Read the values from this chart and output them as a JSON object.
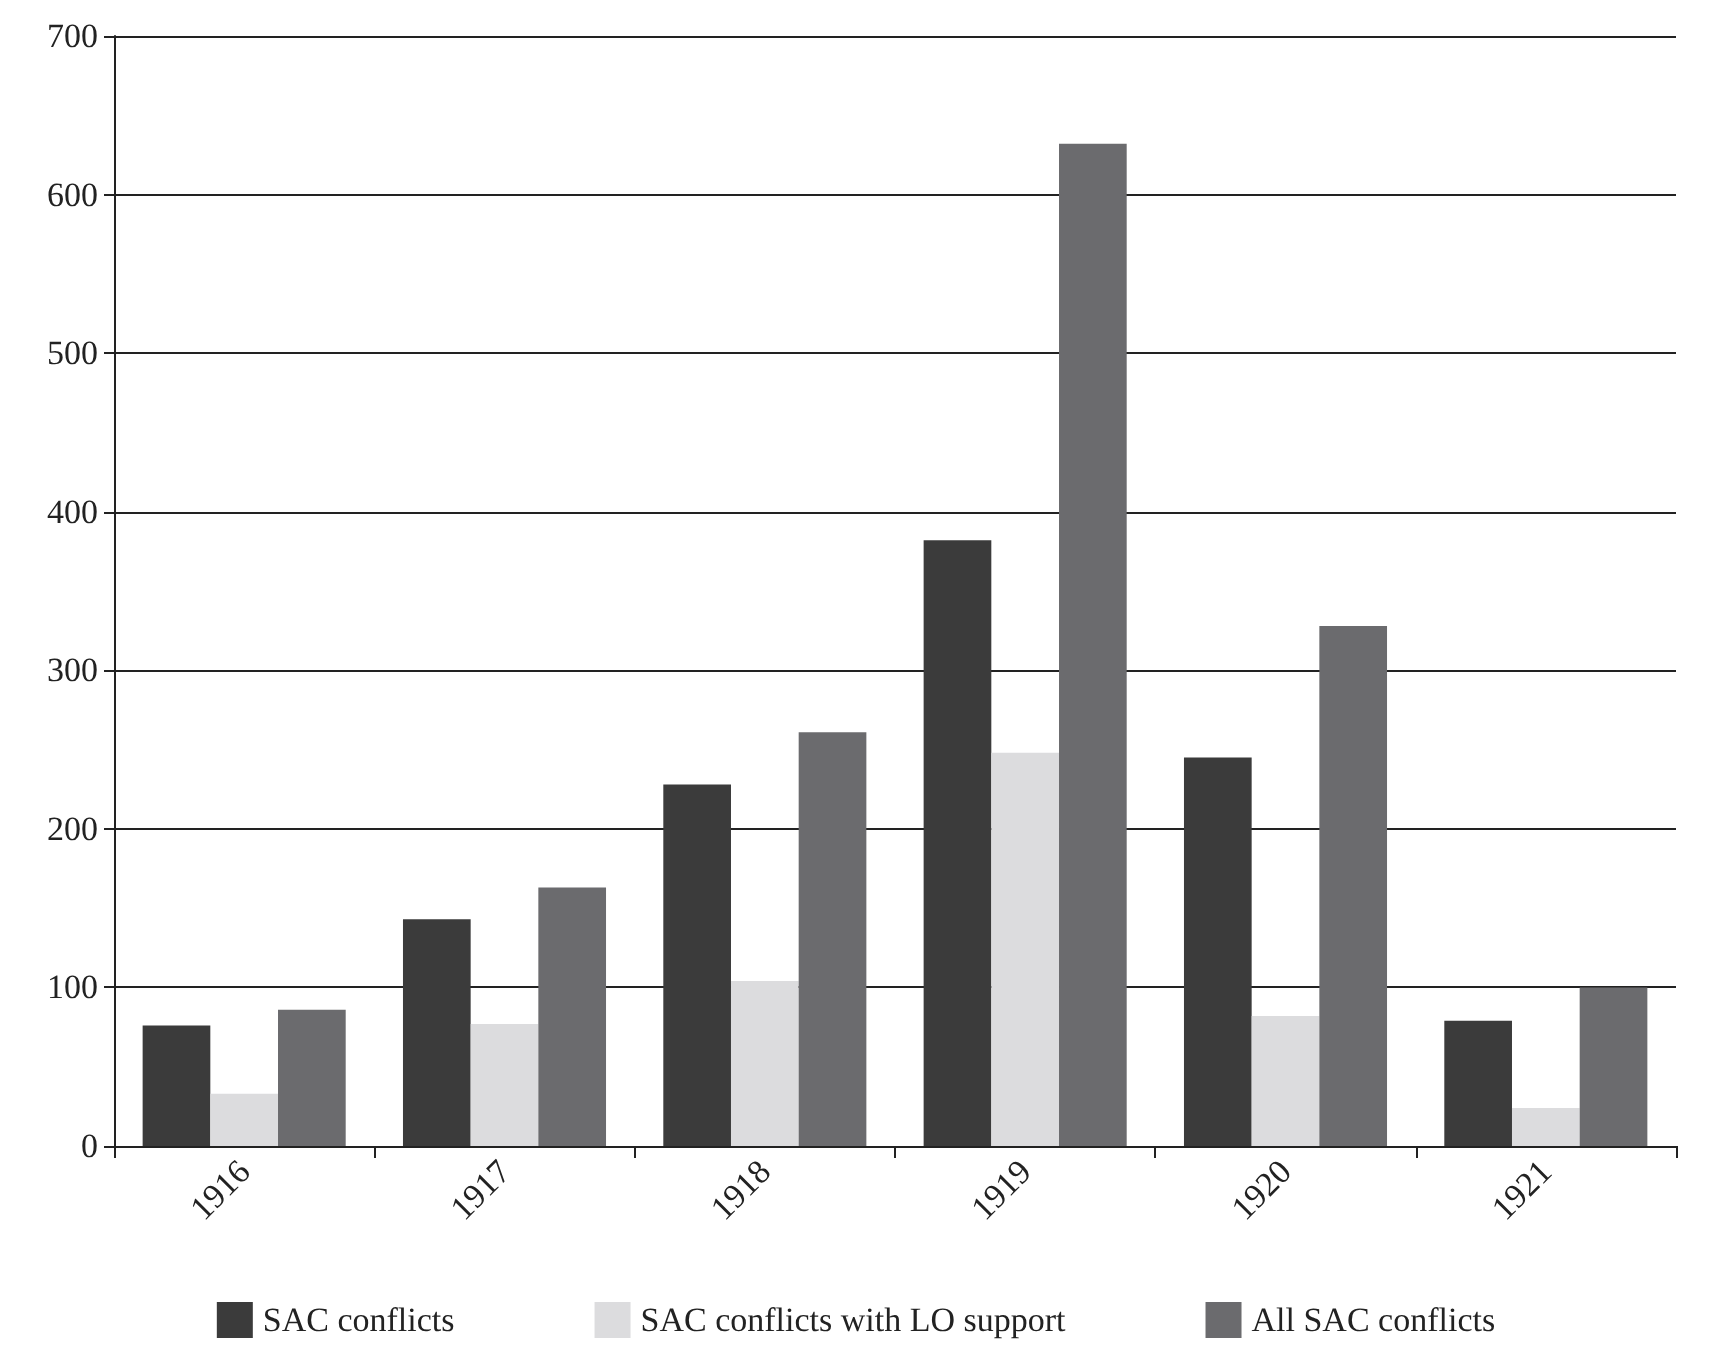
{
  "chart_data": {
    "type": "bar",
    "categories": [
      "1916",
      "1917",
      "1918",
      "1919",
      "1920",
      "1921"
    ],
    "series": [
      {
        "name": "SAC conflicts",
        "color": "#3b3b3b",
        "values": [
          76,
          143,
          228,
          382,
          245,
          79
        ]
      },
      {
        "name": "SAC conflicts with LO support",
        "color": "#dcdcde",
        "values": [
          33,
          77,
          104,
          248,
          82,
          24
        ]
      },
      {
        "name": "All SAC conflicts",
        "color": "#6b6b6e",
        "values": [
          86,
          163,
          261,
          632,
          328,
          100
        ]
      }
    ],
    "ylim": [
      0,
      700
    ],
    "yticks": [
      0,
      100,
      200,
      300,
      400,
      500,
      600,
      700
    ],
    "grid": "y",
    "legend": "bottom"
  }
}
